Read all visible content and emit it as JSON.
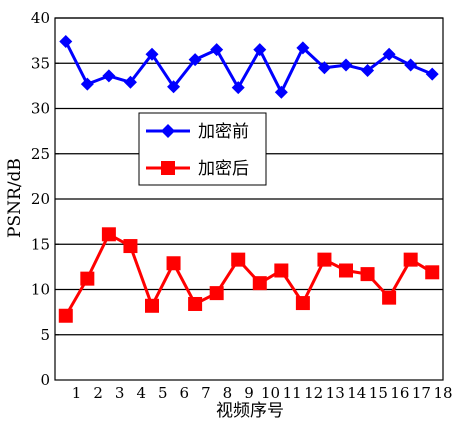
{
  "chart_data": {
    "type": "line",
    "xlabel": "视频序号",
    "ylabel": "PSNR/dB",
    "x": [
      1,
      2,
      3,
      4,
      5,
      6,
      7,
      8,
      9,
      10,
      11,
      12,
      13,
      14,
      15,
      16,
      17,
      18
    ],
    "xlim": [
      0,
      18
    ],
    "ylim": [
      0,
      40
    ],
    "yticks": [
      0,
      5,
      10,
      15,
      20,
      25,
      30,
      35,
      40
    ],
    "grid": "horizontal",
    "legend_position": "center-left",
    "series": [
      {
        "name": "加密前",
        "color": "#0000ff",
        "marker": "diamond",
        "values": [
          37.4,
          32.7,
          33.6,
          32.9,
          36.0,
          32.4,
          35.4,
          36.5,
          32.3,
          36.5,
          31.8,
          36.7,
          34.5,
          34.8,
          34.2,
          36.0,
          34.8,
          33.8
        ]
      },
      {
        "name": "加密后",
        "color": "#ff0000",
        "marker": "square",
        "values": [
          7.1,
          11.2,
          16.1,
          14.8,
          8.2,
          12.9,
          8.4,
          9.6,
          13.3,
          10.7,
          12.1,
          8.5,
          13.3,
          12.1,
          11.7,
          9.1,
          13.3,
          11.9
        ]
      }
    ]
  }
}
